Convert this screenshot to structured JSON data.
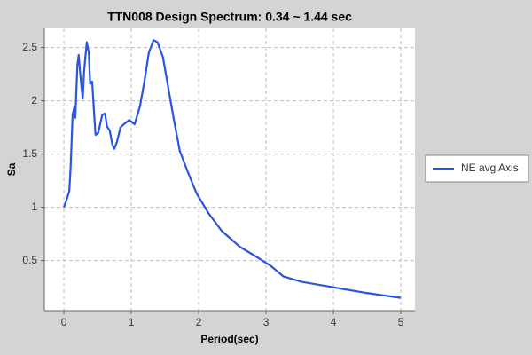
{
  "chart_data": {
    "type": "line",
    "title": "TTN008 Design Spectrum: 0.34 ~ 1.44 sec",
    "x_label": "Period(sec)",
    "y_label": "Sa",
    "x": [
      0,
      0.03,
      0.08,
      0.1,
      0.13,
      0.16,
      0.17,
      0.2,
      0.22,
      0.25,
      0.28,
      0.3,
      0.34,
      0.37,
      0.39,
      0.42,
      0.45,
      0.47,
      0.51,
      0.57,
      0.61,
      0.64,
      0.68,
      0.72,
      0.75,
      0.79,
      0.84,
      0.89,
      0.97,
      1.05,
      1.13,
      1.2,
      1.26,
      1.33,
      1.39,
      1.47,
      1.55,
      1.63,
      1.72,
      1.84,
      1.97,
      2.14,
      2.34,
      2.61,
      2.87,
      3.07,
      3.26,
      3.53,
      3.99,
      4.45,
      5.0
    ],
    "series": [
      {
        "name": "NE avg Axis",
        "color": "#2a55e0",
        "values": [
          1.0,
          1.05,
          1.15,
          1.37,
          1.87,
          1.95,
          1.84,
          2.33,
          2.43,
          2.2,
          2.02,
          2.28,
          2.55,
          2.45,
          2.16,
          2.18,
          1.87,
          1.68,
          1.7,
          1.87,
          1.88,
          1.76,
          1.72,
          1.59,
          1.55,
          1.62,
          1.75,
          1.78,
          1.82,
          1.78,
          1.95,
          2.2,
          2.45,
          2.57,
          2.55,
          2.41,
          2.12,
          1.83,
          1.53,
          1.33,
          1.13,
          0.95,
          0.78,
          0.63,
          0.53,
          0.45,
          0.35,
          0.3,
          0.25,
          0.2,
          0.15
        ]
      }
    ],
    "xlim": [
      -0.29,
      5.21
    ],
    "xticks": [
      0,
      1,
      2,
      3,
      4,
      5
    ],
    "ylim": [
      0.03,
      2.68
    ],
    "yticks": [
      0.5,
      1,
      1.5,
      2,
      2.5
    ],
    "grid": true,
    "legend": "right"
  }
}
